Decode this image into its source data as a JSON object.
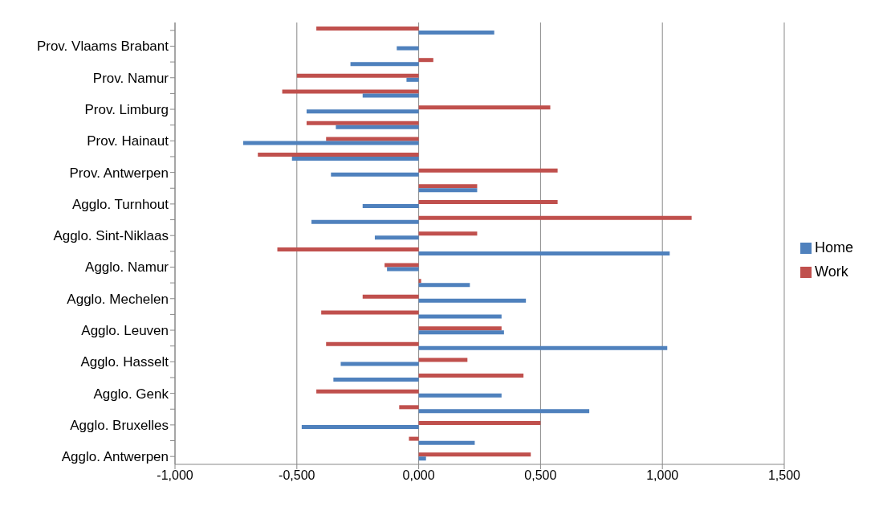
{
  "chart_data": {
    "type": "bar",
    "orientation": "horizontal",
    "categories": [
      null,
      "Prov. Vlaams Brabant",
      null,
      "Prov. Namur",
      null,
      "Prov. Limburg",
      null,
      "Prov. Hainaut",
      null,
      "Prov. Antwerpen",
      null,
      "Agglo. Turnhout",
      null,
      "Agglo. Sint-Niklaas",
      null,
      "Agglo. Namur",
      null,
      "Agglo. Mechelen",
      null,
      "Agglo. Leuven",
      null,
      "Agglo. Hasselt",
      null,
      "Agglo. Genk",
      null,
      "Agglo. Bruxelles",
      null,
      "Agglo. Antwerpen"
    ],
    "series": [
      {
        "name": "Work",
        "color": "#c0504d",
        "values": [
          -0.42,
          null,
          0.06,
          -0.5,
          -0.56,
          0.54,
          -0.46,
          -0.38,
          -0.66,
          0.57,
          0.24,
          0.57,
          1.12,
          0.24,
          -0.58,
          -0.14,
          0.01,
          -0.23,
          -0.4,
          0.34,
          -0.38,
          0.2,
          0.43,
          -0.42,
          -0.08,
          0.5,
          -0.04,
          0.46
        ]
      },
      {
        "name": "Home",
        "color": "#4f81bd",
        "values": [
          0.31,
          -0.09,
          -0.28,
          -0.05,
          -0.23,
          -0.46,
          -0.34,
          -0.72,
          -0.52,
          -0.36,
          0.24,
          -0.23,
          -0.44,
          -0.18,
          1.03,
          -0.13,
          0.21,
          0.44,
          0.34,
          0.35,
          1.02,
          -0.32,
          -0.35,
          0.34,
          0.7,
          -0.48,
          0.23,
          0.03
        ]
      }
    ],
    "xlim": [
      -1,
      1.5
    ],
    "xticks": [
      {
        "value": -1,
        "label": "-1,000"
      },
      {
        "value": -0.5,
        "label": "-0,500"
      },
      {
        "value": 0,
        "label": "0,000"
      },
      {
        "value": 0.5,
        "label": "0,500"
      },
      {
        "value": 1,
        "label": "1,000"
      },
      {
        "value": 1.5,
        "label": "1,500"
      }
    ],
    "grid": "x",
    "legend": "right"
  }
}
